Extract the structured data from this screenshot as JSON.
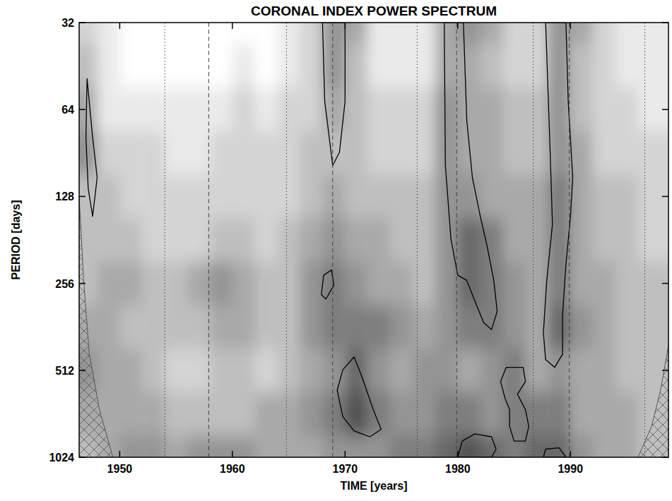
{
  "chart_data": {
    "type": "heatmap",
    "title": "CORONAL INDEX POWER SPECTRUM",
    "x_label": "TIME [years]",
    "y_label": "PERIOD [days]",
    "log": "y",
    "xlim": [
      1946.4,
      1998.7
    ],
    "ylim": [
      32,
      1024
    ],
    "xticks": [
      1950,
      1960,
      1970,
      1980,
      1990
    ],
    "yticks": [
      32,
      64,
      128,
      256,
      512,
      1024
    ],
    "power_range": [
      0,
      5
    ],
    "heatmap": {
      "x": [
        1947,
        1949,
        1951,
        1953,
        1955,
        1957,
        1959,
        1961,
        1963,
        1965,
        1967,
        1969,
        1971,
        1973,
        1975,
        1977,
        1979,
        1981,
        1983,
        1985,
        1987,
        1989,
        1991,
        1993,
        1995,
        1997
      ],
      "y": [
        32,
        45.25,
        64,
        90.51,
        128,
        181.02,
        256,
        362.04,
        512,
        724.08,
        1024
      ],
      "values": [
        [
          1,
          0.5,
          0,
          0,
          0,
          0,
          0,
          0,
          0,
          0.5,
          1,
          2.5,
          2,
          0.5,
          0.5,
          0.5,
          2,
          2.5,
          2,
          1,
          1,
          2.5,
          2,
          1,
          0.5,
          0.5
        ],
        [
          1.5,
          0.5,
          0,
          0,
          0,
          0,
          0,
          0.5,
          0,
          0.5,
          1,
          2.5,
          1.5,
          0.5,
          0.5,
          0.5,
          2,
          2,
          1.5,
          1,
          1,
          2.5,
          1.5,
          1,
          0.5,
          0.5
        ],
        [
          2,
          0.5,
          0.5,
          0.5,
          0.5,
          0.5,
          0.5,
          1,
          0.5,
          1,
          1,
          2,
          1.5,
          1,
          1,
          1,
          2.5,
          2,
          2,
          1.5,
          1.5,
          2.5,
          1.5,
          1,
          1,
          0.5
        ],
        [
          2.5,
          1,
          1,
          1,
          0.5,
          0.5,
          1,
          1,
          1,
          1,
          1.5,
          1.5,
          1.5,
          1,
          1,
          1,
          2.5,
          2,
          2,
          1.5,
          1.5,
          2.5,
          2,
          1,
          1,
          1
        ],
        [
          1.5,
          1.5,
          1,
          1,
          1,
          1,
          1,
          1,
          1,
          1,
          1.5,
          2,
          1.5,
          1.5,
          1.5,
          1.5,
          2.5,
          2.5,
          2,
          2,
          2,
          3,
          2,
          1.5,
          1.5,
          1
        ],
        [
          1.5,
          1.5,
          1.5,
          1,
          1,
          1,
          1.5,
          1.5,
          1,
          1.5,
          2,
          2.5,
          2,
          2,
          1.5,
          1.5,
          2.5,
          3.5,
          3,
          2,
          2,
          3,
          2,
          1.5,
          1.5,
          1
        ],
        [
          1.5,
          2,
          2,
          1.5,
          1.5,
          2,
          2.5,
          2,
          1.5,
          1.5,
          2.5,
          3,
          2.5,
          2,
          2,
          1.5,
          2.5,
          3.5,
          3,
          2.5,
          2,
          3,
          2,
          2,
          1.5,
          1.5
        ],
        [
          2,
          2,
          1.5,
          1.5,
          1.5,
          1.5,
          2,
          2,
          1.5,
          1.5,
          2.5,
          3,
          3,
          3,
          2.5,
          2,
          2.5,
          3,
          3,
          2.5,
          2,
          3.5,
          2.5,
          2,
          1.5,
          1.5
        ],
        [
          2.5,
          2,
          2,
          1.5,
          1,
          1,
          1.5,
          1.5,
          1,
          1.5,
          2,
          2.5,
          3.5,
          2.5,
          2,
          2.5,
          2.5,
          2,
          2.5,
          3,
          2,
          2.5,
          2,
          2,
          1.5,
          1.5
        ],
        [
          2,
          2,
          2,
          2,
          1.5,
          1.5,
          1.5,
          1.5,
          2,
          2,
          2.5,
          3,
          4,
          3,
          2.5,
          2.5,
          3,
          3,
          2.5,
          3,
          3,
          3,
          2,
          2,
          2,
          1.5
        ],
        [
          1.5,
          2,
          2.5,
          2.5,
          2,
          2.5,
          2.5,
          2.5,
          2,
          2,
          2,
          2.5,
          2.5,
          2.5,
          3,
          3,
          3.5,
          4,
          3.5,
          3,
          3.5,
          3.5,
          2.5,
          2,
          2,
          1.5
        ]
      ]
    },
    "contours": [
      {
        "x": [
          1969.3,
          1969.8,
          1970.8,
          1971.5,
          1972.5,
          1973.2,
          1972.2,
          1970.8,
          1969.8
        ],
        "y": [
          600,
          510,
          460,
          540,
          700,
          820,
          870,
          830,
          740
        ]
      },
      {
        "x": [
          1978.8,
          1978.9,
          1979.4,
          1980.0,
          1980.8,
          1981.6,
          1982.3,
          1983.0,
          1983.5,
          1983.2,
          1982.6,
          1982.0,
          1981.3,
          1980.8,
          1980.5
        ],
        "y": [
          32,
          100,
          180,
          240,
          250,
          300,
          350,
          370,
          320,
          250,
          190,
          150,
          110,
          70,
          32
        ]
      },
      {
        "x": [
          1987.8,
          1988.2,
          1988.4,
          1987.9,
          1987.6,
          1987.8,
          1988.6,
          1989.3,
          1989.3,
          1989.6,
          1990.0,
          1990.2,
          1989.8,
          1989.6
        ],
        "y": [
          32,
          90,
          160,
          250,
          380,
          470,
          500,
          450,
          330,
          220,
          150,
          110,
          60,
          32
        ]
      },
      {
        "x": [
          1980.0,
          1980.4,
          1981.5,
          1983.0,
          1983.4,
          1983.0
        ],
        "y": [
          1024,
          900,
          850,
          870,
          960,
          1024
        ]
      },
      {
        "x": [
          1987.6,
          1987.8,
          1989.0,
          1989.6
        ],
        "y": [
          1024,
          960,
          950,
          1024
        ]
      },
      {
        "x": [
          1947.1,
          1947.6,
          1948.0,
          1947.6,
          1947.2,
          1947.0
        ],
        "y": [
          50,
          80,
          110,
          150,
          120,
          80
        ]
      },
      {
        "x": [
          1967.9,
          1968.1,
          1968.8,
          1969.0,
          1968.3
        ],
        "y": [
          280,
          240,
          230,
          260,
          290
        ]
      },
      {
        "x": [
          1983.8,
          1984.3,
          1985.8,
          1986.0,
          1985.3,
          1986.0,
          1986.3,
          1986.0,
          1985.0,
          1984.6,
          1984.6,
          1984.2
        ],
        "y": [
          560,
          500,
          500,
          560,
          620,
          700,
          800,
          900,
          900,
          800,
          700,
          640
        ]
      },
      {
        "x": [
          1968.0,
          1968.2,
          1968.9,
          1969.5,
          1970.0,
          1970.0
        ],
        "y": [
          32,
          60,
          100,
          90,
          60,
          32
        ]
      }
    ],
    "coi": [
      {
        "x": [
          1946.4,
          1946.8,
          1947.3,
          1948.2,
          1949.4
        ],
        "y": [
          128,
          250,
          450,
          700,
          1024
        ]
      },
      {
        "x": [
          1998.7,
          1998.0,
          1997.2,
          1996.0
        ],
        "y": [
          420,
          600,
          800,
          1024
        ]
      }
    ],
    "maxima": [
      1957.9,
      1968.9,
      1979.9,
      1989.9
    ],
    "minima": [
      1954.0,
      1964.8,
      1976.4,
      1986.7,
      1996.6
    ]
  }
}
